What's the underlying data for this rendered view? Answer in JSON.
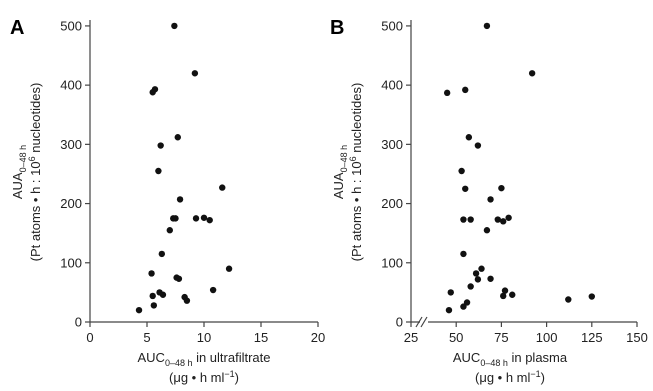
{
  "chart_data": [
    {
      "type": "scatter",
      "panel": "A",
      "x_axis": {
        "label_main": "AUC",
        "label_sub": "0–48 h",
        "label_rest": " in ultrafiltrate",
        "unit_line": "(μg • h ml",
        "unit_sup": "−1",
        "unit_close": ")",
        "ticks": [
          0,
          5,
          10,
          15,
          20
        ],
        "range": [
          0,
          20
        ]
      },
      "y_axis": {
        "label_main": "AUA",
        "label_sub": "0–48 h",
        "unit_line_a": "(Pt atoms • h : 10",
        "unit_sup": "6",
        "unit_line_b": " nucleotides)",
        "ticks": [
          0,
          100,
          200,
          300,
          400,
          500
        ],
        "range": [
          0,
          510
        ]
      },
      "grid": false,
      "points": [
        {
          "x": 7.4,
          "y": 500
        },
        {
          "x": 9.2,
          "y": 420
        },
        {
          "x": 5.7,
          "y": 393
        },
        {
          "x": 5.5,
          "y": 388
        },
        {
          "x": 7.7,
          "y": 312
        },
        {
          "x": 6.2,
          "y": 298
        },
        {
          "x": 6.0,
          "y": 255
        },
        {
          "x": 11.6,
          "y": 227
        },
        {
          "x": 7.9,
          "y": 207
        },
        {
          "x": 7.3,
          "y": 175
        },
        {
          "x": 7.5,
          "y": 175
        },
        {
          "x": 9.3,
          "y": 175
        },
        {
          "x": 10.0,
          "y": 176
        },
        {
          "x": 10.5,
          "y": 172
        },
        {
          "x": 7.0,
          "y": 155
        },
        {
          "x": 6.3,
          "y": 115
        },
        {
          "x": 12.2,
          "y": 90
        },
        {
          "x": 5.4,
          "y": 82
        },
        {
          "x": 7.6,
          "y": 75
        },
        {
          "x": 7.8,
          "y": 73
        },
        {
          "x": 10.8,
          "y": 54
        },
        {
          "x": 6.1,
          "y": 50
        },
        {
          "x": 5.5,
          "y": 44
        },
        {
          "x": 6.4,
          "y": 46
        },
        {
          "x": 8.3,
          "y": 42
        },
        {
          "x": 8.5,
          "y": 36
        },
        {
          "x": 5.6,
          "y": 28
        },
        {
          "x": 4.3,
          "y": 20
        }
      ]
    },
    {
      "type": "scatter",
      "panel": "B",
      "x_axis": {
        "label_main": "AUC",
        "label_sub": "0–48 h",
        "label_rest": " in plasma",
        "unit_line": "(μg • h ml",
        "unit_sup": "−1",
        "unit_close": ")",
        "ticks": [
          25,
          50,
          75,
          100,
          125,
          150
        ],
        "range": [
          25,
          150
        ],
        "axis_break": true
      },
      "y_axis": {
        "label_main": "AUA",
        "label_sub": "0–48 h",
        "unit_line_a": "(Pt atoms • h : 10",
        "unit_sup": "6",
        "unit_line_b": " nucleotides)",
        "ticks": [
          0,
          100,
          200,
          300,
          400,
          500
        ],
        "range": [
          0,
          510
        ]
      },
      "grid": false,
      "points": [
        {
          "x": 67,
          "y": 500
        },
        {
          "x": 92,
          "y": 420
        },
        {
          "x": 55,
          "y": 392
        },
        {
          "x": 45,
          "y": 387
        },
        {
          "x": 57,
          "y": 312
        },
        {
          "x": 62,
          "y": 298
        },
        {
          "x": 53,
          "y": 255
        },
        {
          "x": 75,
          "y": 226
        },
        {
          "x": 55,
          "y": 225
        },
        {
          "x": 69,
          "y": 207
        },
        {
          "x": 54,
          "y": 173
        },
        {
          "x": 58,
          "y": 173
        },
        {
          "x": 73,
          "y": 173
        },
        {
          "x": 76,
          "y": 170
        },
        {
          "x": 79,
          "y": 176
        },
        {
          "x": 67,
          "y": 155
        },
        {
          "x": 54,
          "y": 115
        },
        {
          "x": 64,
          "y": 90
        },
        {
          "x": 61,
          "y": 82
        },
        {
          "x": 62,
          "y": 72
        },
        {
          "x": 69,
          "y": 73
        },
        {
          "x": 58,
          "y": 60
        },
        {
          "x": 77,
          "y": 53
        },
        {
          "x": 47,
          "y": 50
        },
        {
          "x": 76,
          "y": 44
        },
        {
          "x": 81,
          "y": 46
        },
        {
          "x": 112,
          "y": 38
        },
        {
          "x": 125,
          "y": 43
        },
        {
          "x": 56,
          "y": 33
        },
        {
          "x": 54,
          "y": 26
        },
        {
          "x": 46,
          "y": 20
        }
      ]
    }
  ]
}
